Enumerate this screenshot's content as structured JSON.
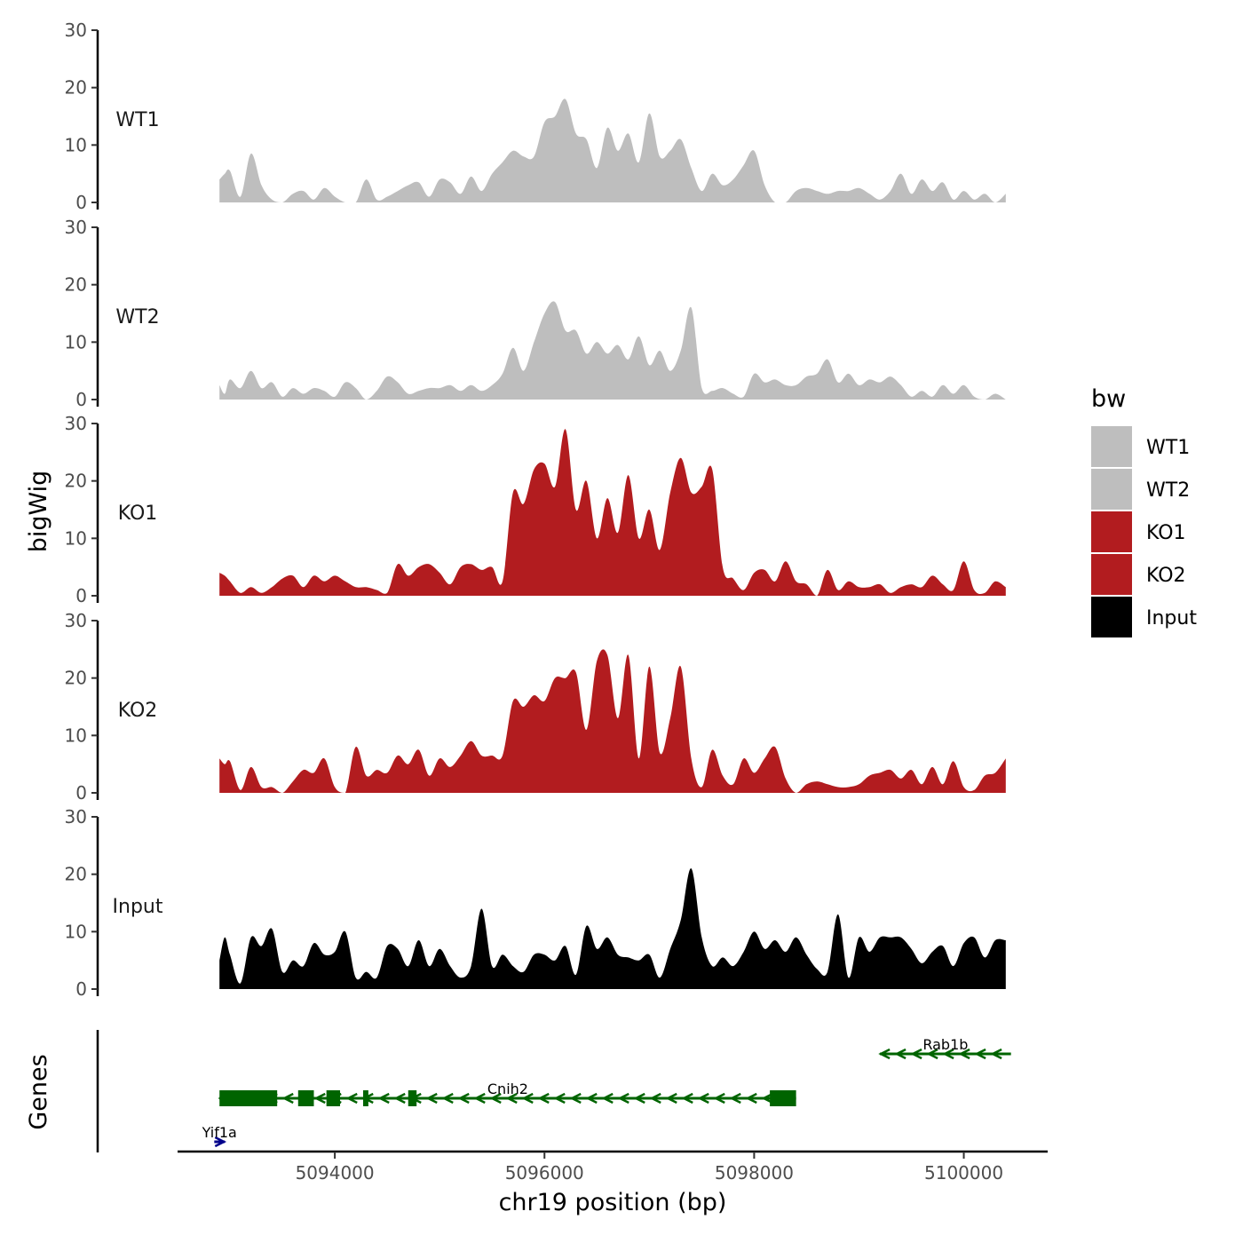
{
  "chart_data": {
    "type": "area",
    "title": "",
    "ylabel": "bigWig",
    "genes_ylabel": "Genes",
    "xlabel": "chr19 position (bp)",
    "chrom": "chr19",
    "xlim": [
      5092500,
      5100800
    ],
    "ylim": [
      0,
      30
    ],
    "yticks": [
      0,
      10,
      20,
      30
    ],
    "xticks": [
      5094000,
      5096000,
      5098000,
      5100000
    ],
    "xtick_labels": [
      "5094000",
      "5096000",
      "5098000",
      "5100000"
    ],
    "legend_title": "bw",
    "legend_position": "right",
    "tracks": [
      {
        "name": "WT1",
        "color": "#bebebe",
        "x": [
          5092900,
          5092950,
          5093000,
          5093100,
          5093200,
          5093300,
          5093400,
          5093500,
          5093600,
          5093700,
          5093800,
          5093900,
          5094000,
          5094100,
          5094200,
          5094300,
          5094400,
          5094500,
          5094600,
          5094700,
          5094800,
          5094900,
          5095000,
          5095100,
          5095200,
          5095300,
          5095400,
          5095500,
          5095600,
          5095700,
          5095800,
          5095900,
          5096000,
          5096100,
          5096200,
          5096300,
          5096400,
          5096500,
          5096600,
          5096700,
          5096800,
          5096900,
          5097000,
          5097100,
          5097200,
          5097300,
          5097400,
          5097500,
          5097600,
          5097700,
          5097800,
          5097900,
          5098000,
          5098100,
          5098200,
          5098300,
          5098400,
          5098500,
          5098600,
          5098700,
          5098800,
          5098900,
          5099000,
          5099100,
          5099200,
          5099300,
          5099400,
          5099500,
          5099600,
          5099700,
          5099800,
          5099900,
          5100000,
          5100100,
          5100200,
          5100300,
          5100400
        ],
        "values": [
          4,
          5,
          5.5,
          1,
          8.5,
          3,
          0.5,
          0,
          1.5,
          2,
          0.5,
          2.5,
          1,
          0,
          0,
          4,
          0.5,
          1,
          2,
          3,
          3.5,
          1,
          4,
          3.5,
          1.5,
          4.5,
          2,
          5,
          7,
          9,
          8,
          8,
          14,
          15,
          18,
          12,
          11,
          6,
          13,
          9,
          12,
          7,
          15.5,
          8,
          9,
          11,
          6,
          2,
          5,
          3,
          4,
          6.5,
          9,
          3,
          0,
          0,
          2,
          2.5,
          2,
          1.5,
          2,
          2,
          2.5,
          1.5,
          0.5,
          2,
          5,
          1.5,
          4,
          2,
          3.5,
          0.5,
          2,
          0.5,
          1.5,
          0,
          1.5
        ]
      },
      {
        "name": "WT2",
        "color": "#bebebe",
        "x": [
          5092900,
          5092950,
          5093000,
          5093100,
          5093200,
          5093300,
          5093400,
          5093500,
          5093600,
          5093700,
          5093800,
          5093900,
          5094000,
          5094100,
          5094200,
          5094300,
          5094400,
          5094500,
          5094600,
          5094700,
          5094800,
          5094900,
          5095000,
          5095100,
          5095200,
          5095300,
          5095400,
          5095500,
          5095600,
          5095700,
          5095800,
          5095900,
          5096000,
          5096100,
          5096200,
          5096300,
          5096400,
          5096500,
          5096600,
          5096700,
          5096800,
          5096900,
          5097000,
          5097100,
          5097200,
          5097300,
          5097400,
          5097500,
          5097600,
          5097700,
          5097800,
          5097900,
          5098000,
          5098100,
          5098200,
          5098300,
          5098400,
          5098500,
          5098600,
          5098700,
          5098800,
          5098900,
          5099000,
          5099100,
          5099200,
          5099300,
          5099400,
          5099500,
          5099600,
          5099700,
          5099800,
          5099900,
          5100000,
          5100100,
          5100200,
          5100300,
          5100400
        ],
        "values": [
          2.5,
          1,
          3.5,
          2,
          5,
          2,
          3,
          0.5,
          2,
          1,
          2,
          1.5,
          0.5,
          3,
          2,
          0,
          1.5,
          4,
          3,
          1,
          1.5,
          2,
          2,
          2.5,
          1.5,
          2.5,
          1.5,
          2.5,
          4.5,
          9,
          5,
          10,
          15,
          17,
          12,
          12,
          8,
          10,
          8,
          9.5,
          7,
          11,
          6,
          8.5,
          5,
          8.5,
          16,
          2,
          1.5,
          2,
          1,
          0.5,
          4.5,
          3,
          3.5,
          2.5,
          2.5,
          4,
          4.5,
          7,
          3,
          4.5,
          2.5,
          3.5,
          3,
          4,
          2.5,
          0.5,
          1.5,
          0.5,
          2.5,
          1,
          2.5,
          0.5,
          0,
          1,
          0
        ]
      },
      {
        "name": "KO1",
        "color": "#b21c1f",
        "x": [
          5092900,
          5092950,
          5093000,
          5093100,
          5093200,
          5093300,
          5093400,
          5093500,
          5093600,
          5093700,
          5093800,
          5093900,
          5094000,
          5094100,
          5094200,
          5094300,
          5094400,
          5094500,
          5094600,
          5094700,
          5094800,
          5094900,
          5095000,
          5095100,
          5095200,
          5095300,
          5095400,
          5095500,
          5095600,
          5095700,
          5095800,
          5095900,
          5096000,
          5096100,
          5096200,
          5096300,
          5096400,
          5096500,
          5096600,
          5096700,
          5096800,
          5096900,
          5097000,
          5097100,
          5097200,
          5097300,
          5097400,
          5097500,
          5097600,
          5097700,
          5097800,
          5097900,
          5098000,
          5098100,
          5098200,
          5098300,
          5098400,
          5098500,
          5098600,
          5098700,
          5098800,
          5098900,
          5099000,
          5099100,
          5099200,
          5099300,
          5099400,
          5099500,
          5099600,
          5099700,
          5099800,
          5099900,
          5100000,
          5100100,
          5100200,
          5100300,
          5100400
        ],
        "values": [
          4,
          3.5,
          2.5,
          0.5,
          1.5,
          0.5,
          1.5,
          3,
          3.5,
          1.5,
          3.5,
          2.5,
          3.5,
          2.5,
          1.5,
          1.5,
          1,
          0.5,
          5.5,
          3.5,
          5,
          5.5,
          4,
          2,
          5,
          5.5,
          4.5,
          5,
          2.5,
          18,
          16,
          22,
          23,
          19,
          29,
          15,
          20,
          10,
          17,
          11,
          21,
          10,
          15,
          8,
          18,
          24,
          18,
          19,
          22,
          5,
          3,
          1,
          4,
          4.5,
          2.5,
          6,
          2.5,
          2,
          0,
          4.5,
          1,
          2.5,
          1.5,
          1.5,
          2,
          0.5,
          1.5,
          2,
          1.5,
          3.5,
          2,
          1,
          6,
          1,
          0.5,
          2.5,
          1.5
        ]
      },
      {
        "name": "KO2",
        "color": "#b21c1f",
        "x": [
          5092900,
          5092950,
          5093000,
          5093100,
          5093200,
          5093300,
          5093400,
          5093500,
          5093600,
          5093700,
          5093800,
          5093900,
          5094000,
          5094100,
          5094200,
          5094300,
          5094400,
          5094500,
          5094600,
          5094700,
          5094800,
          5094900,
          5095000,
          5095100,
          5095200,
          5095300,
          5095400,
          5095500,
          5095600,
          5095700,
          5095800,
          5095900,
          5096000,
          5096100,
          5096200,
          5096300,
          5096400,
          5096500,
          5096600,
          5096700,
          5096800,
          5096900,
          5097000,
          5097100,
          5097200,
          5097300,
          5097400,
          5097500,
          5097600,
          5097700,
          5097800,
          5097900,
          5098000,
          5098100,
          5098200,
          5098300,
          5098400,
          5098500,
          5098600,
          5098700,
          5098800,
          5098900,
          5099000,
          5099100,
          5099200,
          5099300,
          5099400,
          5099500,
          5099600,
          5099700,
          5099800,
          5099900,
          5100000,
          5100100,
          5100200,
          5100300,
          5100400
        ],
        "values": [
          6,
          5,
          5.5,
          0.5,
          4.5,
          1,
          1,
          0,
          2,
          4,
          3.5,
          6,
          1,
          0,
          8,
          3,
          4,
          3.5,
          6.5,
          5,
          7.5,
          3,
          6,
          4.5,
          6.5,
          9,
          6.5,
          6.5,
          6.5,
          16,
          15,
          17,
          16,
          20,
          20,
          21,
          11,
          23,
          24,
          13,
          24,
          6,
          22,
          7,
          13,
          22,
          6,
          1,
          7.5,
          3,
          1.5,
          6,
          3.5,
          6,
          8,
          2.5,
          0,
          1.5,
          2,
          1.5,
          1,
          1,
          1.5,
          3,
          3.5,
          4,
          2.5,
          4,
          1.5,
          4.5,
          1.5,
          5.5,
          1,
          0.5,
          3,
          3.5,
          6
        ]
      },
      {
        "name": "Input",
        "color": "#000000",
        "x": [
          5092900,
          5092950,
          5093000,
          5093100,
          5093200,
          5093300,
          5093400,
          5093500,
          5093600,
          5093700,
          5093800,
          5093900,
          5094000,
          5094100,
          5094200,
          5094300,
          5094400,
          5094500,
          5094600,
          5094700,
          5094800,
          5094900,
          5095000,
          5095100,
          5095200,
          5095300,
          5095400,
          5095500,
          5095600,
          5095700,
          5095800,
          5095900,
          5096000,
          5096100,
          5096200,
          5096300,
          5096400,
          5096500,
          5096600,
          5096700,
          5096800,
          5096900,
          5097000,
          5097100,
          5097200,
          5097300,
          5097400,
          5097500,
          5097600,
          5097700,
          5097800,
          5097900,
          5098000,
          5098100,
          5098200,
          5098300,
          5098400,
          5098500,
          5098600,
          5098700,
          5098800,
          5098900,
          5099000,
          5099100,
          5099200,
          5099300,
          5099400,
          5099500,
          5099600,
          5099700,
          5099800,
          5099900,
          5100000,
          5100100,
          5100200,
          5100300,
          5100400
        ],
        "values": [
          5,
          9,
          6,
          1,
          9,
          7.5,
          10.5,
          3,
          5,
          4,
          8,
          6,
          6.5,
          10,
          2,
          3,
          2,
          7.5,
          7,
          4,
          8.5,
          4,
          7,
          4,
          2,
          4,
          14,
          4,
          6,
          4,
          3,
          6,
          6,
          5,
          7.5,
          2.5,
          11,
          7,
          9,
          6,
          5.5,
          5,
          6,
          2,
          7,
          12,
          21,
          9,
          4,
          5.5,
          4,
          6.5,
          10,
          7,
          8.5,
          6.5,
          9,
          6,
          3.5,
          3,
          13,
          2,
          9,
          6.5,
          9,
          9,
          9,
          7,
          4.5,
          6.5,
          7.5,
          4,
          8,
          9,
          5.5,
          8.5,
          8.5
        ]
      }
    ],
    "genes": [
      {
        "name": "Cnih2",
        "strand": "-",
        "color": "#006400",
        "start": 5092900,
        "end": 5098400,
        "exons": [
          [
            5092900,
            5093450
          ],
          [
            5093650,
            5093800
          ],
          [
            5093920,
            5094050
          ],
          [
            5094270,
            5094320
          ],
          [
            5094700,
            5094780
          ],
          [
            5098150,
            5098400
          ]
        ]
      },
      {
        "name": "Rab1b",
        "strand": "-",
        "color": "#006400",
        "start": 5099200,
        "end": 5100450,
        "exons": []
      },
      {
        "name": "Yif1a",
        "strand": "+",
        "color": "#00008b",
        "start": 5092850,
        "end": 5092950,
        "exons": []
      }
    ]
  }
}
